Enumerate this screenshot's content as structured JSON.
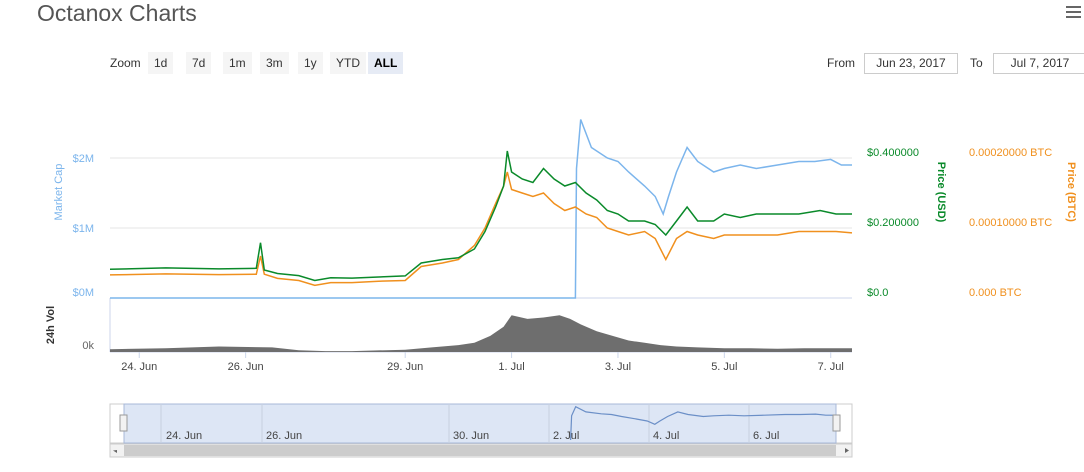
{
  "page": {
    "title": "Octanox Charts"
  },
  "toolbar": {
    "zoom_label": "Zoom",
    "zoom_buttons": [
      "1d",
      "7d",
      "1m",
      "3m",
      "1y",
      "YTD",
      "ALL"
    ],
    "active_zoom": "ALL",
    "from_label": "From",
    "from_value": "Jun 23, 2017",
    "to_label": "To",
    "to_value": "Jul 7, 2017"
  },
  "colors": {
    "market_cap": "#7cb5ec",
    "price_usd": "#0a8a2a",
    "price_btc": "#f0901e",
    "volume": "#6e6e6e"
  },
  "chart_data": {
    "type": "line",
    "y_axes": {
      "market_cap": {
        "label": "Market Cap",
        "ticks": [
          "$2M",
          "$1M",
          "$0M"
        ],
        "range": [
          0,
          2000000
        ]
      },
      "price_usd": {
        "label": "Price (USD)",
        "ticks": [
          "$0.400000",
          "$0.200000",
          "$0.0"
        ],
        "range": [
          0,
          0.4
        ]
      },
      "price_btc": {
        "label": "Price (BTC)",
        "ticks": [
          "0.00020000 BTC",
          "0.00010000 BTC",
          "0.000 BTC"
        ],
        "range": [
          0,
          0.0002
        ]
      },
      "volume": {
        "label": "24h Vol",
        "ticks": [
          "0k"
        ]
      }
    },
    "x_tick_labels": [
      "24. Jun",
      "26. Jun",
      "29. Jun",
      "1. Jul",
      "3. Jul",
      "5. Jul",
      "7. Jul"
    ],
    "x_tick_days": [
      1,
      3,
      6,
      8,
      10,
      12,
      14
    ],
    "x_range_days": [
      0.45,
      14.4
    ],
    "x_origin_date": "Jun 23, 2017",
    "navigator": {
      "tick_labels": [
        "24. Jun",
        "26. Jun",
        "30. Jun",
        "2. Jul",
        "4. Jul",
        "6. Jul"
      ]
    },
    "series": [
      {
        "name": "Market Cap",
        "axis": "market_cap",
        "points": [
          [
            0.45,
            0
          ],
          [
            9.2,
            0
          ],
          [
            9.22,
            1850000
          ],
          [
            9.3,
            2550000
          ],
          [
            9.5,
            2150000
          ],
          [
            9.8,
            2000000
          ],
          [
            10.0,
            1950000
          ],
          [
            10.2,
            1800000
          ],
          [
            10.5,
            1600000
          ],
          [
            10.7,
            1450000
          ],
          [
            10.85,
            1200000
          ],
          [
            10.95,
            1450000
          ],
          [
            11.1,
            1800000
          ],
          [
            11.3,
            2150000
          ],
          [
            11.5,
            1950000
          ],
          [
            11.8,
            1800000
          ],
          [
            12.0,
            1850000
          ],
          [
            12.3,
            1900000
          ],
          [
            12.6,
            1850000
          ],
          [
            13.0,
            1900000
          ],
          [
            13.4,
            1950000
          ],
          [
            13.7,
            1950000
          ],
          [
            14.0,
            1980000
          ],
          [
            14.2,
            1900000
          ],
          [
            14.4,
            1900000
          ]
        ]
      },
      {
        "name": "Price (USD)",
        "axis": "price_usd",
        "points": [
          [
            0.45,
            0.082
          ],
          [
            1.5,
            0.086
          ],
          [
            2.5,
            0.083
          ],
          [
            3.2,
            0.085
          ],
          [
            3.28,
            0.158
          ],
          [
            3.35,
            0.08
          ],
          [
            3.6,
            0.07
          ],
          [
            4.0,
            0.064
          ],
          [
            4.3,
            0.05
          ],
          [
            4.6,
            0.058
          ],
          [
            5.0,
            0.057
          ],
          [
            5.5,
            0.06
          ],
          [
            6.0,
            0.063
          ],
          [
            6.3,
            0.1
          ],
          [
            6.7,
            0.11
          ],
          [
            7.0,
            0.115
          ],
          [
            7.3,
            0.14
          ],
          [
            7.5,
            0.19
          ],
          [
            7.7,
            0.26
          ],
          [
            7.85,
            0.32
          ],
          [
            7.92,
            0.42
          ],
          [
            8.0,
            0.36
          ],
          [
            8.2,
            0.34
          ],
          [
            8.4,
            0.33
          ],
          [
            8.6,
            0.37
          ],
          [
            8.8,
            0.34
          ],
          [
            9.0,
            0.32
          ],
          [
            9.2,
            0.33
          ],
          [
            9.4,
            0.3
          ],
          [
            9.6,
            0.28
          ],
          [
            9.8,
            0.25
          ],
          [
            10.0,
            0.24
          ],
          [
            10.2,
            0.22
          ],
          [
            10.5,
            0.22
          ],
          [
            10.7,
            0.21
          ],
          [
            10.9,
            0.18
          ],
          [
            11.1,
            0.22
          ],
          [
            11.3,
            0.26
          ],
          [
            11.5,
            0.22
          ],
          [
            11.8,
            0.22
          ],
          [
            12.0,
            0.24
          ],
          [
            12.3,
            0.23
          ],
          [
            12.6,
            0.24
          ],
          [
            13.0,
            0.24
          ],
          [
            13.4,
            0.24
          ],
          [
            13.8,
            0.25
          ],
          [
            14.1,
            0.24
          ],
          [
            14.4,
            0.24
          ]
        ]
      },
      {
        "name": "Price (BTC)",
        "axis": "price_btc",
        "points": [
          [
            0.45,
            3.3e-05
          ],
          [
            1.5,
            3.45e-05
          ],
          [
            2.5,
            3.35e-05
          ],
          [
            3.2,
            3.4e-05
          ],
          [
            3.28,
            6e-05
          ],
          [
            3.35,
            3.4e-05
          ],
          [
            3.6,
            2.8e-05
          ],
          [
            4.0,
            2.5e-05
          ],
          [
            4.3,
            1.8e-05
          ],
          [
            4.6,
            2.2e-05
          ],
          [
            5.0,
            2.2e-05
          ],
          [
            5.5,
            2.4e-05
          ],
          [
            6.0,
            2.5e-05
          ],
          [
            6.3,
            4.5e-05
          ],
          [
            6.7,
            5e-05
          ],
          [
            7.0,
            5.5e-05
          ],
          [
            7.3,
            7.5e-05
          ],
          [
            7.5,
            0.0001
          ],
          [
            7.7,
            0.000135
          ],
          [
            7.85,
            0.00016
          ],
          [
            7.92,
            0.00018
          ],
          [
            8.0,
            0.000155
          ],
          [
            8.2,
            0.00015
          ],
          [
            8.4,
            0.000145
          ],
          [
            8.6,
            0.00015
          ],
          [
            8.8,
            0.000135
          ],
          [
            9.0,
            0.000125
          ],
          [
            9.2,
            0.00013
          ],
          [
            9.4,
            0.00012
          ],
          [
            9.6,
            0.000115
          ],
          [
            9.8,
            0.0001
          ],
          [
            10.0,
            9.5e-05
          ],
          [
            10.2,
            9e-05
          ],
          [
            10.5,
            9.5e-05
          ],
          [
            10.7,
            8.5e-05
          ],
          [
            10.9,
            5.5e-05
          ],
          [
            11.1,
            8.5e-05
          ],
          [
            11.3,
            9.5e-05
          ],
          [
            11.5,
            9e-05
          ],
          [
            11.8,
            8.5e-05
          ],
          [
            12.0,
            9e-05
          ],
          [
            12.3,
            9e-05
          ],
          [
            12.6,
            9e-05
          ],
          [
            13.0,
            9e-05
          ],
          [
            13.4,
            9.5e-05
          ],
          [
            13.8,
            9.5e-05
          ],
          [
            14.1,
            9.5e-05
          ],
          [
            14.4,
            9.3e-05
          ]
        ]
      },
      {
        "name": "24h Vol",
        "axis": "volume",
        "points": [
          [
            0.45,
            0.06
          ],
          [
            1.5,
            0.08
          ],
          [
            2.5,
            0.12
          ],
          [
            3.5,
            0.1
          ],
          [
            4.0,
            0.04
          ],
          [
            4.5,
            0.02
          ],
          [
            5.0,
            0.02
          ],
          [
            6.0,
            0.05
          ],
          [
            6.5,
            0.1
          ],
          [
            7.0,
            0.15
          ],
          [
            7.3,
            0.2
          ],
          [
            7.6,
            0.35
          ],
          [
            7.85,
            0.55
          ],
          [
            8.0,
            0.8
          ],
          [
            8.3,
            0.72
          ],
          [
            8.6,
            0.75
          ],
          [
            8.9,
            0.8
          ],
          [
            9.1,
            0.72
          ],
          [
            9.3,
            0.6
          ],
          [
            9.6,
            0.45
          ],
          [
            9.9,
            0.35
          ],
          [
            10.2,
            0.25
          ],
          [
            10.5,
            0.2
          ],
          [
            10.8,
            0.15
          ],
          [
            11.1,
            0.12
          ],
          [
            11.5,
            0.1
          ],
          [
            12.0,
            0.08
          ],
          [
            12.5,
            0.08
          ],
          [
            13.0,
            0.07
          ],
          [
            13.5,
            0.08
          ],
          [
            14.0,
            0.08
          ],
          [
            14.4,
            0.08
          ]
        ]
      }
    ]
  }
}
